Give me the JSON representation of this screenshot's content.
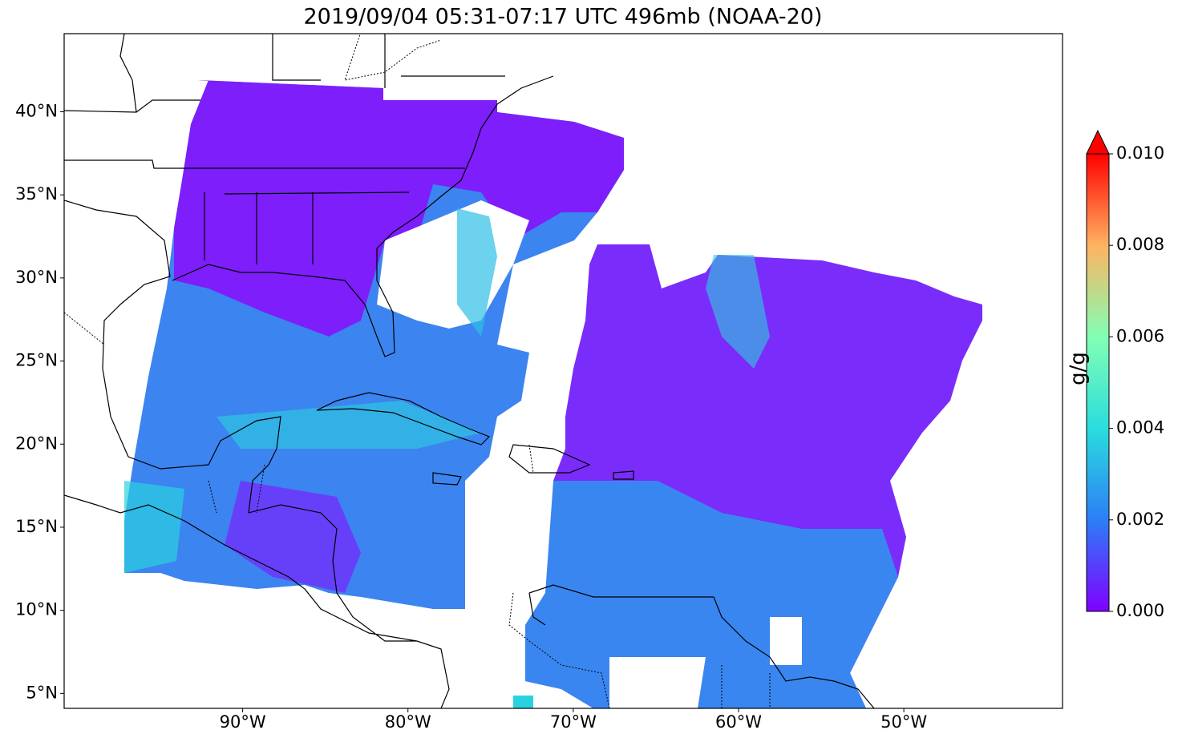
{
  "title": "2019/09/04 05:31-07:17 UTC 496mb (NOAA-20)",
  "map": {
    "xlim": [
      -100.8,
      -40.4
    ],
    "ylim": [
      4.1,
      44.7
    ],
    "xticks": [
      {
        "value": -90,
        "label": "90°W"
      },
      {
        "value": -80,
        "label": "80°W"
      },
      {
        "value": -70,
        "label": "70°W"
      },
      {
        "value": -60,
        "label": "60°W"
      },
      {
        "value": -50,
        "label": "50°W"
      }
    ],
    "yticks": [
      {
        "value": 5,
        "label": "5°N"
      },
      {
        "value": 10,
        "label": "10°N"
      },
      {
        "value": 15,
        "label": "15°N"
      },
      {
        "value": 20,
        "label": "20°N"
      },
      {
        "value": 25,
        "label": "25°N"
      },
      {
        "value": 30,
        "label": "30°N"
      },
      {
        "value": 35,
        "label": "35°N"
      },
      {
        "value": 40,
        "label": "40°N"
      }
    ]
  },
  "colorbar": {
    "label": "g/g",
    "lim": [
      0,
      0.01
    ],
    "ticks": [
      {
        "value": 0,
        "label": "0.000"
      },
      {
        "value": 0.002,
        "label": "0.002"
      },
      {
        "value": 0.004,
        "label": "0.004"
      },
      {
        "value": 0.006,
        "label": "0.006"
      },
      {
        "value": 0.008,
        "label": "0.008"
      },
      {
        "value": 0.01,
        "label": "0.010"
      }
    ]
  }
}
